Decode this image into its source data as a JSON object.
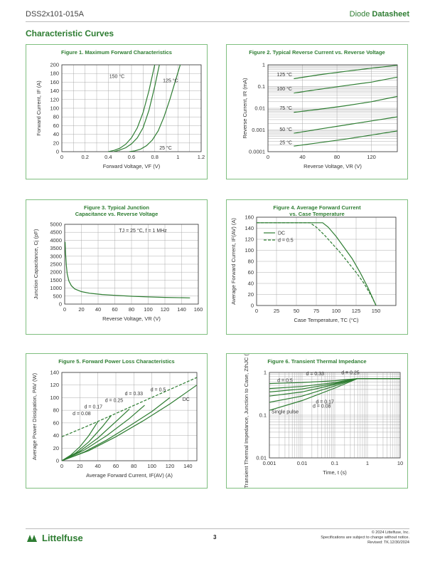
{
  "header": {
    "doc_id": "DSS2x101-015A",
    "type_light": "Diode ",
    "type_bold": "Datasheet"
  },
  "section_title": "Characteristic Curves",
  "footer": {
    "brand": "Littelfuse",
    "page": "3",
    "copyright": "© 2024 Littelfuse, Inc.",
    "notice": "Specifications are subject to change without notice.",
    "revised": "Revised: TK.12/30/2024"
  },
  "colors": {
    "curve": "#2e7d32",
    "grid": "#999999",
    "frame": "#7fbf7f"
  },
  "chart_data": [
    {
      "type": "line",
      "title": "Figure 1. Maximum Forward Characteristics",
      "xlabel": "Forward Voltage, VF (V)",
      "ylabel": "Forward Current, IF (A)",
      "xlim": [
        0,
        1.2
      ],
      "ylim": [
        0,
        200
      ],
      "xticks": [
        "0",
        "0.2",
        "0.4",
        "0.6",
        "0.8",
        "1",
        "1.2"
      ],
      "yticks": [
        "0",
        "20",
        "40",
        "60",
        "80",
        "100",
        "120",
        "140",
        "160",
        "180",
        "200"
      ],
      "series": [
        {
          "name": "150 °C",
          "x": [
            0.4,
            0.45,
            0.5,
            0.55,
            0.6,
            0.65,
            0.7,
            0.75,
            0.8
          ],
          "y": [
            0,
            3,
            8,
            17,
            32,
            55,
            90,
            140,
            200
          ]
        },
        {
          "name": "125 °C",
          "x": [
            0.45,
            0.5,
            0.55,
            0.6,
            0.65,
            0.7,
            0.75,
            0.8,
            0.84
          ],
          "y": [
            0,
            4,
            9,
            18,
            32,
            55,
            95,
            150,
            200
          ]
        },
        {
          "name": "25 °C",
          "x": [
            0.58,
            0.63,
            0.68,
            0.73,
            0.78,
            0.83,
            0.88,
            0.93,
            0.98,
            1.02
          ],
          "y": [
            0,
            2,
            6,
            14,
            27,
            48,
            80,
            120,
            165,
            200
          ]
        }
      ]
    },
    {
      "type": "line",
      "title": "Figure 2. Typical Reverse Current vs. Reverse Voltage",
      "xlabel": "Reverse Voltage, VR (V)",
      "ylabel": "Reverse Current, IR (mA)",
      "xlim": [
        0,
        150
      ],
      "ylim": [
        0.0001,
        1
      ],
      "yscale": "log",
      "xticks": [
        "0",
        "40",
        "80",
        "120"
      ],
      "yticks": [
        "0.0001",
        "0.001",
        "0.01",
        "0.1",
        "1"
      ],
      "series": [
        {
          "name": "125 °C",
          "x": [
            30,
            60,
            90,
            120,
            150
          ],
          "y": [
            0.23,
            0.35,
            0.5,
            0.7,
            0.95
          ]
        },
        {
          "name": "100 °C",
          "x": [
            30,
            60,
            90,
            120,
            150
          ],
          "y": [
            0.05,
            0.075,
            0.11,
            0.16,
            0.27
          ]
        },
        {
          "name": "75 °C",
          "x": [
            30,
            60,
            90,
            120,
            150
          ],
          "y": [
            0.0065,
            0.009,
            0.013,
            0.02,
            0.035
          ]
        },
        {
          "name": "50 °C",
          "x": [
            30,
            60,
            90,
            120,
            150
          ],
          "y": [
            0.0007,
            0.0011,
            0.0017,
            0.0026,
            0.004
          ]
        },
        {
          "name": "25 °C",
          "x": [
            30,
            60,
            90,
            120,
            150
          ],
          "y": [
            0.00018,
            0.00026,
            0.00038,
            0.00058,
            0.0009
          ]
        }
      ]
    },
    {
      "type": "line",
      "title": "Figure 3. Typical Junction Capacitance vs. Reverse Voltage",
      "xlabel": "Reverse Voltage, VR (V)",
      "ylabel": "Junction Capacitance, Cj (pF)",
      "xlim": [
        0,
        160
      ],
      "ylim": [
        0,
        5000
      ],
      "xticks": [
        "0",
        "20",
        "40",
        "60",
        "80",
        "100",
        "120",
        "140",
        "160"
      ],
      "yticks": [
        "0",
        "500",
        "1000",
        "1500",
        "2000",
        "2500",
        "3000",
        "3500",
        "4000",
        "4500",
        "5000"
      ],
      "annotation": "TJ = 25 °C, f = 1 MHz",
      "series": [
        {
          "name": "",
          "x": [
            0.5,
            1,
            2,
            3,
            5,
            8,
            12,
            20,
            30,
            45,
            60,
            80,
            100,
            120,
            150
          ],
          "y": [
            3900,
            3200,
            2400,
            1900,
            1450,
            1150,
            950,
            780,
            680,
            600,
            550,
            490,
            450,
            420,
            390
          ]
        }
      ]
    },
    {
      "type": "line",
      "title": "Figure 4. Average Forward Current vs. Case Temperature",
      "xlabel": "Case Temperature, TC (°C)",
      "ylabel": "Average Forward Current, IF(AV) (A)",
      "xlim": [
        0,
        175
      ],
      "ylim": [
        0,
        160
      ],
      "xticks": [
        "0",
        "25",
        "50",
        "75",
        "100",
        "125",
        "150"
      ],
      "yticks": [
        "0",
        "20",
        "40",
        "60",
        "80",
        "100",
        "120",
        "140",
        "160"
      ],
      "series": [
        {
          "name": "DC",
          "x": [
            0,
            83,
            90,
            100,
            110,
            120,
            130,
            140,
            150
          ],
          "y": [
            150,
            150,
            142,
            125,
            105,
            85,
            60,
            32,
            0
          ]
        },
        {
          "name": "d = 0.5",
          "x": [
            0,
            67,
            75,
            85,
            95,
            105,
            115,
            125,
            135,
            145,
            150
          ],
          "y": [
            150,
            150,
            142,
            128,
            112,
            96,
            78,
            60,
            40,
            15,
            0
          ]
        }
      ]
    },
    {
      "type": "line",
      "title": "Figure 5. Forward Power Loss Characteristics",
      "xlabel": "Average Forward Current, IF(AV) (A)",
      "ylabel": "Average Power Dissipation, PAV (W)",
      "xlim": [
        0,
        150
      ],
      "ylim": [
        0,
        140
      ],
      "xticks": [
        "0",
        "20",
        "40",
        "60",
        "80",
        "100",
        "120",
        "140"
      ],
      "yticks": [
        "0",
        "20",
        "40",
        "60",
        "80",
        "100",
        "120",
        "140"
      ],
      "series": [
        {
          "name": "d = 0.08",
          "x": [
            0,
            10,
            20,
            30,
            40
          ],
          "y": [
            0,
            9,
            22,
            40,
            62
          ]
        },
        {
          "name": "d = 0.17",
          "x": [
            0,
            15,
            30,
            45,
            55
          ],
          "y": [
            0,
            12,
            30,
            54,
            72
          ]
        },
        {
          "name": "d = 0.25",
          "x": [
            0,
            20,
            40,
            60,
            75
          ],
          "y": [
            0,
            15,
            36,
            62,
            82
          ]
        },
        {
          "name": "d = 0.33",
          "x": [
            0,
            25,
            50,
            75,
            92
          ],
          "y": [
            0,
            17,
            40,
            67,
            88
          ]
        },
        {
          "name": "d = 0.5",
          "x": [
            0,
            25,
            50,
            75,
            100,
            120
          ],
          "y": [
            0,
            14,
            33,
            55,
            78,
            100
          ]
        },
        {
          "name": "DC",
          "x": [
            0,
            30,
            60,
            90,
            120,
            150
          ],
          "y": [
            0,
            16,
            38,
            63,
            90,
            120
          ]
        },
        {
          "name": "dashed",
          "x": [
            0,
            30,
            60,
            90,
            120,
            150
          ],
          "y": [
            38,
            56,
            75,
            94,
            113,
            132
          ]
        }
      ]
    },
    {
      "type": "line",
      "title": "Figure 6. Transient Thermal Impedance",
      "xlabel": "Time, t (s)",
      "ylabel": "Transient Thermal Impedance, Junction to Case, ZthJC (K/W)",
      "xlim": [
        0.001,
        10
      ],
      "ylim": [
        0.01,
        1
      ],
      "xscale": "log",
      "yscale": "log",
      "xticks": [
        "0.001",
        "0.01",
        "0.1",
        "1",
        "10"
      ],
      "yticks": [
        "0.01",
        "0.1",
        "1"
      ],
      "labels": [
        "d = 0.33",
        "d = 0.25",
        "d = 0.5",
        "d = 0.17",
        "d = 0.08",
        "Single pulse"
      ],
      "series": [
        {
          "name": "d = 0.5",
          "x": [
            0.001,
            0.01,
            0.1,
            0.5,
            10
          ],
          "y": [
            0.55,
            0.58,
            0.64,
            0.72,
            0.72
          ]
        },
        {
          "name": "d = 0.33",
          "x": [
            0.001,
            0.01,
            0.1,
            0.5,
            10
          ],
          "y": [
            0.42,
            0.47,
            0.58,
            0.72,
            0.72
          ]
        },
        {
          "name": "d = 0.25",
          "x": [
            0.001,
            0.01,
            0.1,
            0.5,
            10
          ],
          "y": [
            0.35,
            0.41,
            0.55,
            0.72,
            0.72
          ]
        },
        {
          "name": "d = 0.17",
          "x": [
            0.001,
            0.01,
            0.1,
            0.5,
            10
          ],
          "y": [
            0.28,
            0.35,
            0.52,
            0.72,
            0.72
          ]
        },
        {
          "name": "d = 0.08",
          "x": [
            0.001,
            0.01,
            0.1,
            0.5,
            10
          ],
          "y": [
            0.2,
            0.28,
            0.48,
            0.72,
            0.72
          ]
        },
        {
          "name": "Single pulse",
          "x": [
            0.001,
            0.01,
            0.1,
            0.5,
            10
          ],
          "y": [
            0.13,
            0.22,
            0.43,
            0.72,
            0.72
          ]
        }
      ]
    }
  ]
}
